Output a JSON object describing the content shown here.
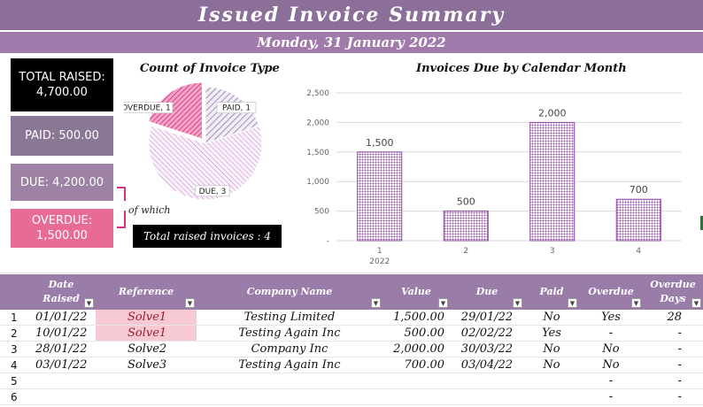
{
  "header": {
    "title": "Issued Invoice Summary",
    "date": "Monday, 31 January 2022"
  },
  "kpis": {
    "total": "TOTAL RAISED:\n4,700.00",
    "paid": "PAID: 500.00",
    "due": "DUE: 4,200.00",
    "overdue": "OVERDUE:\n1,500.00"
  },
  "of_which": "of which",
  "total_invoices": "Total raised invoices : 4",
  "colors": {
    "header": "#8c6f99",
    "overdue": "#e86b96",
    "paid_slice": "#b39fc4",
    "due_slice": "#c99bd0",
    "overdue_slice": "#e0589a",
    "bar": "#8e3fa3"
  },
  "pie": {
    "title": "Count of Invoice Type",
    "slices": [
      {
        "label": "PAID, 1",
        "value": 1
      },
      {
        "label": "DUE, 3",
        "value": 3
      },
      {
        "label": "OVERDUE, 1",
        "value": 1
      }
    ]
  },
  "chart_data": {
    "type": "bar",
    "title": "Invoices Due by Calendar Month",
    "categories": [
      "1",
      "2",
      "3",
      "4"
    ],
    "category_sublabel": "2022",
    "values": [
      1500,
      500,
      2000,
      700
    ],
    "data_labels": [
      "1,500",
      "500",
      "2,000",
      "700"
    ],
    "yticks": [
      "-",
      "500",
      "1,000",
      "1,500",
      "2,000",
      "2,500"
    ],
    "ylim": [
      0,
      2500
    ],
    "grid": true
  },
  "table": {
    "columns": [
      {
        "key": "date",
        "label": "Date\nRaised"
      },
      {
        "key": "ref",
        "label": "Reference"
      },
      {
        "key": "company",
        "label": "Company Name"
      },
      {
        "key": "value",
        "label": "Value"
      },
      {
        "key": "due",
        "label": "Due"
      },
      {
        "key": "paid",
        "label": "Paid"
      },
      {
        "key": "overdue",
        "label": "Overdue"
      },
      {
        "key": "days",
        "label": "Overdue\nDays"
      }
    ],
    "dropdown_glyph": "▼",
    "rows": [
      {
        "n": "1",
        "date": "01/01/22",
        "ref": "Solve1",
        "company": "Testing Limited",
        "value": "1,500.00",
        "due": "29/01/22",
        "paid": "No",
        "overdue": "Yes",
        "days": "28"
      },
      {
        "n": "2",
        "date": "10/01/22",
        "ref": "Solve1",
        "company": "Testing Again Inc",
        "value": "500.00",
        "due": "02/02/22",
        "paid": "Yes",
        "overdue": "-",
        "days": "-"
      },
      {
        "n": "3",
        "date": "28/01/22",
        "ref": "Solve2",
        "company": "Company Inc",
        "value": "2,000.00",
        "due": "30/03/22",
        "paid": "No",
        "overdue": "No",
        "days": "-"
      },
      {
        "n": "4",
        "date": "03/01/22",
        "ref": "Solve3",
        "company": "Testing Again Inc",
        "value": "700.00",
        "due": "03/04/22",
        "paid": "No",
        "overdue": "No",
        "days": "-"
      },
      {
        "n": "5",
        "date": "",
        "ref": "",
        "company": "",
        "value": "",
        "due": "",
        "paid": "",
        "overdue": "-",
        "days": "-"
      },
      {
        "n": "6",
        "date": "",
        "ref": "",
        "company": "",
        "value": "",
        "due": "",
        "paid": "",
        "overdue": "-",
        "days": "-"
      }
    ]
  }
}
